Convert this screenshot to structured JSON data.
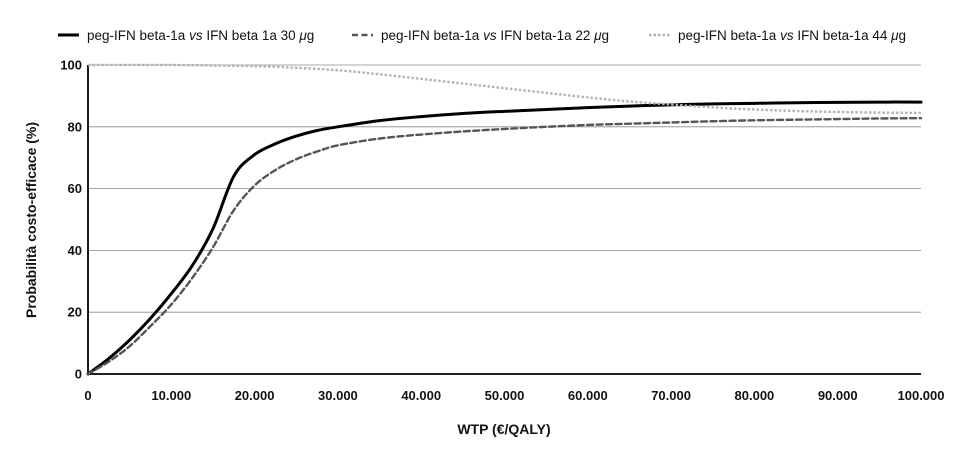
{
  "chart_data": {
    "type": "line",
    "xlabel": "WTP (€/QALY)",
    "ylabel": "Probabilità costo-efficace (%)",
    "xlim": [
      0,
      100000
    ],
    "ylim": [
      0,
      100
    ],
    "x_ticks": [
      {
        "value": 0,
        "label": "0"
      },
      {
        "value": 10000,
        "label": "10.000"
      },
      {
        "value": 20000,
        "label": "20.000"
      },
      {
        "value": 30000,
        "label": "30.000"
      },
      {
        "value": 40000,
        "label": "40.000"
      },
      {
        "value": 50000,
        "label": "50.000"
      },
      {
        "value": 60000,
        "label": "60.000"
      },
      {
        "value": 70000,
        "label": "70.000"
      },
      {
        "value": 80000,
        "label": "80.000"
      },
      {
        "value": 90000,
        "label": "90.000"
      },
      {
        "value": 100000,
        "label": "100.000"
      }
    ],
    "y_ticks": [
      {
        "value": 0,
        "label": "0"
      },
      {
        "value": 20,
        "label": "20"
      },
      {
        "value": 40,
        "label": "40"
      },
      {
        "value": 60,
        "label": "60"
      },
      {
        "value": 80,
        "label": "80"
      },
      {
        "value": 100,
        "label": "100"
      }
    ],
    "grid": "horizontal",
    "legend_position": "top",
    "series": [
      {
        "name_parts": [
          "peg-IFN beta-1a ",
          "vs",
          " IFN beta 1a 30 ",
          "μ",
          "g"
        ],
        "color": "#000000",
        "style": "solid",
        "points": [
          [
            0,
            0
          ],
          [
            2500,
            5
          ],
          [
            5000,
            11
          ],
          [
            7500,
            18
          ],
          [
            10000,
            26
          ],
          [
            12500,
            35
          ],
          [
            15000,
            47
          ],
          [
            17500,
            64
          ],
          [
            20000,
            71
          ],
          [
            22500,
            74.5
          ],
          [
            25000,
            77
          ],
          [
            27500,
            78.8
          ],
          [
            30000,
            80
          ],
          [
            35000,
            82
          ],
          [
            40000,
            83.3
          ],
          [
            45000,
            84.3
          ],
          [
            50000,
            85
          ],
          [
            55000,
            85.6
          ],
          [
            60000,
            86.2
          ],
          [
            65000,
            86.7
          ],
          [
            70000,
            87.1
          ],
          [
            75000,
            87.4
          ],
          [
            80000,
            87.6
          ],
          [
            85000,
            87.8
          ],
          [
            90000,
            87.9
          ],
          [
            95000,
            88
          ],
          [
            100000,
            88
          ]
        ]
      },
      {
        "name_parts": [
          "peg-IFN beta-1a ",
          "vs",
          " IFN beta-1a 22 ",
          "μ",
          "g"
        ],
        "color": "#555555",
        "style": "dashed",
        "points": [
          [
            0,
            0
          ],
          [
            2500,
            4
          ],
          [
            5000,
            9
          ],
          [
            7500,
            15.5
          ],
          [
            10000,
            22.5
          ],
          [
            12500,
            31
          ],
          [
            15000,
            41
          ],
          [
            17500,
            53
          ],
          [
            20000,
            61
          ],
          [
            22500,
            66
          ],
          [
            25000,
            69.5
          ],
          [
            27500,
            72
          ],
          [
            30000,
            74
          ],
          [
            35000,
            76.2
          ],
          [
            40000,
            77.5
          ],
          [
            45000,
            78.5
          ],
          [
            50000,
            79.3
          ],
          [
            55000,
            80
          ],
          [
            60000,
            80.6
          ],
          [
            65000,
            81
          ],
          [
            70000,
            81.4
          ],
          [
            75000,
            81.8
          ],
          [
            80000,
            82.1
          ],
          [
            85000,
            82.3
          ],
          [
            90000,
            82.5
          ],
          [
            95000,
            82.7
          ],
          [
            100000,
            82.8
          ]
        ]
      },
      {
        "name_parts": [
          "peg-IFN beta-1a ",
          "vs",
          " IFN beta-1a 44 ",
          "μ",
          "g"
        ],
        "color": "#b3b3b3",
        "style": "dotted",
        "points": [
          [
            0,
            100
          ],
          [
            10000,
            100
          ],
          [
            20000,
            99.6
          ],
          [
            25000,
            99.1
          ],
          [
            30000,
            98.3
          ],
          [
            35000,
            97
          ],
          [
            40000,
            95.5
          ],
          [
            45000,
            94
          ],
          [
            50000,
            92.5
          ],
          [
            55000,
            91
          ],
          [
            60000,
            89.5
          ],
          [
            65000,
            88.2
          ],
          [
            70000,
            87.2
          ],
          [
            75000,
            86.3
          ],
          [
            80000,
            85.6
          ],
          [
            85000,
            85.1
          ],
          [
            90000,
            84.8
          ],
          [
            95000,
            84.6
          ],
          [
            100000,
            84.5
          ]
        ]
      }
    ]
  }
}
